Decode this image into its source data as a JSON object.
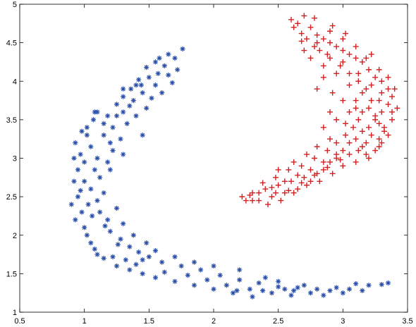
{
  "chart_data": {
    "type": "scatter",
    "title": "",
    "xlabel": "",
    "ylabel": "",
    "xlim": [
      0.5,
      3.5
    ],
    "ylim": [
      1,
      5
    ],
    "xticks": [
      0.5,
      1,
      1.5,
      2,
      2.5,
      3,
      3.5
    ],
    "xtick_labels": [
      "0.5",
      "1",
      "1.5",
      "2",
      "2.5",
      "3",
      "3.5"
    ],
    "yticks": [
      1,
      1.5,
      2,
      2.5,
      3,
      3.5,
      4,
      4.5,
      5
    ],
    "ytick_labels": [
      "1",
      "1.5",
      "2",
      "2.5",
      "3",
      "3.5",
      "4",
      "4.5",
      "5"
    ],
    "grid": false,
    "legend": "none",
    "series": [
      {
        "marker": "asterisk",
        "color": "#2b4ea8",
        "points": [
          [
            0.93,
            3.2
          ],
          [
            0.97,
            3.05
          ],
          [
            1.02,
            3.3
          ],
          [
            1.07,
            3.5
          ],
          [
            1.1,
            3.6
          ],
          [
            1.18,
            3.55
          ],
          [
            1.25,
            3.7
          ],
          [
            1.3,
            3.8
          ],
          [
            1.36,
            3.9
          ],
          [
            1.44,
            3.95
          ],
          [
            1.5,
            4.05
          ],
          [
            1.57,
            4.1
          ],
          [
            1.62,
            4.2
          ],
          [
            1.7,
            4.3
          ],
          [
            1.76,
            4.42
          ],
          [
            1.65,
            4.08
          ],
          [
            1.55,
            3.95
          ],
          [
            1.45,
            3.85
          ],
          [
            1.38,
            3.75
          ],
          [
            1.3,
            3.6
          ],
          [
            1.22,
            3.4
          ],
          [
            1.15,
            3.3
          ],
          [
            1.05,
            3.15
          ],
          [
            1.0,
            2.95
          ],
          [
            0.95,
            2.85
          ],
          [
            0.92,
            2.7
          ],
          [
            0.95,
            2.5
          ],
          [
            0.9,
            2.4
          ],
          [
            0.93,
            2.2
          ],
          [
            1.0,
            2.1
          ],
          [
            1.05,
            1.9
          ],
          [
            1.1,
            1.75
          ],
          [
            1.15,
            1.7
          ],
          [
            1.25,
            1.6
          ],
          [
            1.35,
            1.55
          ],
          [
            1.45,
            1.5
          ],
          [
            1.55,
            1.45
          ],
          [
            1.7,
            1.4
          ],
          [
            1.85,
            1.35
          ],
          [
            2.0,
            1.3
          ],
          [
            2.15,
            1.25
          ],
          [
            2.3,
            1.2
          ],
          [
            2.45,
            1.25
          ],
          [
            2.6,
            1.22
          ],
          [
            2.75,
            1.25
          ],
          [
            2.9,
            1.28
          ],
          [
            3.05,
            1.3
          ],
          [
            3.2,
            1.35
          ],
          [
            3.35,
            1.38
          ],
          [
            1.05,
            2.6
          ],
          [
            1.1,
            2.45
          ],
          [
            1.12,
            2.3
          ],
          [
            1.18,
            2.2
          ],
          [
            1.2,
            2.05
          ],
          [
            1.28,
            1.95
          ],
          [
            1.35,
            1.85
          ],
          [
            1.42,
            1.78
          ],
          [
            1.5,
            1.72
          ],
          [
            1.6,
            1.65
          ],
          [
            1.75,
            1.6
          ],
          [
            1.9,
            1.55
          ],
          [
            2.05,
            1.48
          ],
          [
            2.2,
            1.42
          ],
          [
            2.35,
            1.38
          ],
          [
            2.5,
            1.33
          ],
          [
            2.65,
            1.32
          ],
          [
            2.8,
            1.3
          ],
          [
            2.95,
            1.32
          ],
          [
            1.12,
            2.75
          ],
          [
            1.18,
            2.95
          ],
          [
            1.22,
            3.1
          ],
          [
            1.28,
            3.25
          ],
          [
            1.33,
            3.45
          ],
          [
            1.4,
            3.55
          ],
          [
            1.48,
            3.65
          ],
          [
            1.52,
            3.78
          ],
          [
            1.6,
            3.85
          ],
          [
            1.68,
            3.98
          ],
          [
            1.72,
            4.15
          ],
          [
            1.58,
            4.3
          ],
          [
            1.48,
            4.18
          ],
          [
            1.42,
            4.02
          ],
          [
            1.35,
            3.68
          ],
          [
            1.2,
            3.2
          ],
          [
            1.1,
            3.0
          ],
          [
            1.08,
            2.85
          ],
          [
            1.03,
            2.4
          ],
          [
            0.98,
            2.3
          ],
          [
            1.02,
            2.0
          ],
          [
            1.08,
            1.82
          ],
          [
            1.22,
            1.72
          ],
          [
            1.32,
            1.68
          ],
          [
            1.4,
            1.62
          ],
          [
            1.62,
            1.52
          ],
          [
            1.8,
            1.48
          ],
          [
            1.95,
            1.42
          ],
          [
            2.1,
            1.35
          ],
          [
            2.28,
            1.3
          ],
          [
            2.55,
            1.3
          ],
          [
            2.7,
            1.35
          ],
          [
            3.1,
            1.37
          ],
          [
            0.98,
            3.35
          ],
          [
            1.15,
            3.45
          ],
          [
            1.25,
            3.55
          ],
          [
            1.55,
            4.25
          ],
          [
            1.65,
            4.35
          ],
          [
            1.4,
            3.95
          ],
          [
            1.3,
            3.9
          ],
          [
            1.08,
            3.6
          ],
          [
            1.02,
            3.4
          ],
          [
            0.92,
            3.0
          ],
          [
            1.0,
            2.7
          ],
          [
            1.15,
            2.55
          ],
          [
            1.25,
            2.35
          ],
          [
            1.3,
            2.15
          ],
          [
            1.38,
            2.0
          ],
          [
            1.48,
            1.9
          ],
          [
            1.55,
            1.8
          ],
          [
            1.7,
            1.72
          ],
          [
            1.85,
            1.65
          ],
          [
            2.0,
            1.6
          ],
          [
            2.2,
            1.55
          ],
          [
            2.4,
            1.45
          ],
          [
            2.5,
            1.4
          ],
          [
            1.2,
            2.85
          ],
          [
            1.3,
            3.05
          ],
          [
            1.45,
            3.3
          ],
          [
            0.97,
            2.58
          ],
          [
            1.06,
            2.25
          ],
          [
            1.16,
            2.12
          ],
          [
            1.26,
            1.88
          ],
          [
            1.45,
            1.68
          ],
          [
            2.62,
            1.28
          ],
          [
            2.85,
            1.22
          ],
          [
            3.0,
            1.25
          ],
          [
            3.15,
            1.28
          ],
          [
            3.3,
            1.36
          ],
          [
            2.38,
            1.28
          ],
          [
            2.18,
            1.28
          ]
        ]
      },
      {
        "marker": "plus",
        "color": "#d42020",
        "points": [
          [
            2.25,
            2.45
          ],
          [
            2.3,
            2.55
          ],
          [
            2.35,
            2.45
          ],
          [
            2.4,
            2.6
          ],
          [
            2.45,
            2.5
          ],
          [
            2.5,
            2.65
          ],
          [
            2.55,
            2.55
          ],
          [
            2.6,
            2.7
          ],
          [
            2.65,
            2.6
          ],
          [
            2.7,
            2.75
          ],
          [
            2.75,
            2.7
          ],
          [
            2.8,
            2.8
          ],
          [
            2.85,
            2.85
          ],
          [
            2.9,
            2.95
          ],
          [
            2.95,
            3.0
          ],
          [
            3.0,
            3.1
          ],
          [
            3.05,
            3.2
          ],
          [
            3.1,
            3.25
          ],
          [
            3.15,
            3.35
          ],
          [
            3.2,
            3.4
          ],
          [
            3.25,
            3.5
          ],
          [
            3.3,
            3.6
          ],
          [
            3.35,
            3.7
          ],
          [
            3.38,
            3.8
          ],
          [
            3.35,
            3.9
          ],
          [
            3.3,
            4.0
          ],
          [
            3.25,
            4.05
          ],
          [
            3.2,
            4.15
          ],
          [
            3.15,
            4.25
          ],
          [
            3.1,
            4.3
          ],
          [
            3.05,
            4.35
          ],
          [
            3.0,
            4.4
          ],
          [
            2.95,
            4.45
          ],
          [
            2.9,
            4.5
          ],
          [
            2.85,
            4.55
          ],
          [
            2.8,
            4.6
          ],
          [
            2.75,
            4.7
          ],
          [
            2.7,
            4.85
          ],
          [
            2.65,
            4.75
          ],
          [
            2.6,
            4.8
          ],
          [
            2.72,
            4.55
          ],
          [
            2.82,
            4.4
          ],
          [
            2.9,
            4.3
          ],
          [
            2.98,
            4.2
          ],
          [
            3.05,
            4.1
          ],
          [
            3.12,
            4.0
          ],
          [
            3.18,
            3.9
          ],
          [
            3.22,
            3.75
          ],
          [
            3.28,
            3.45
          ],
          [
            3.32,
            3.35
          ],
          [
            3.3,
            3.2
          ],
          [
            3.25,
            3.1
          ],
          [
            3.18,
            3.05
          ],
          [
            3.1,
            2.95
          ],
          [
            3.0,
            2.9
          ],
          [
            2.92,
            2.8
          ],
          [
            2.82,
            2.7
          ],
          [
            2.72,
            2.65
          ],
          [
            2.62,
            2.55
          ],
          [
            2.52,
            2.45
          ],
          [
            2.42,
            2.4
          ],
          [
            2.35,
            2.55
          ],
          [
            2.48,
            2.75
          ],
          [
            2.58,
            2.85
          ],
          [
            2.68,
            2.9
          ],
          [
            2.78,
            3.0
          ],
          [
            2.88,
            3.1
          ],
          [
            2.95,
            3.2
          ],
          [
            3.02,
            3.3
          ],
          [
            3.08,
            3.4
          ],
          [
            3.12,
            3.5
          ],
          [
            3.15,
            3.6
          ],
          [
            3.2,
            3.65
          ],
          [
            3.28,
            3.75
          ],
          [
            3.22,
            3.95
          ],
          [
            3.12,
            4.1
          ],
          [
            3.0,
            4.25
          ],
          [
            2.88,
            4.35
          ],
          [
            2.78,
            4.45
          ],
          [
            2.68,
            4.62
          ],
          [
            2.78,
            4.82
          ],
          [
            2.9,
            4.65
          ],
          [
            3.0,
            4.55
          ],
          [
            3.1,
            4.45
          ],
          [
            3.18,
            4.3
          ],
          [
            3.28,
            4.15
          ],
          [
            3.35,
            4.05
          ],
          [
            3.4,
            3.9
          ],
          [
            3.42,
            3.65
          ],
          [
            3.38,
            3.5
          ],
          [
            3.35,
            3.3
          ],
          [
            3.28,
            3.25
          ],
          [
            3.22,
            3.3
          ],
          [
            3.15,
            3.15
          ],
          [
            3.05,
            3.05
          ],
          [
            2.95,
            3.05
          ],
          [
            2.85,
            2.95
          ],
          [
            2.75,
            2.85
          ],
          [
            2.65,
            2.78
          ],
          [
            2.55,
            2.7
          ],
          [
            2.45,
            2.62
          ],
          [
            2.28,
            2.52
          ],
          [
            2.38,
            2.68
          ],
          [
            2.5,
            2.85
          ],
          [
            2.62,
            2.95
          ],
          [
            2.72,
            3.05
          ],
          [
            2.8,
            3.15
          ],
          [
            2.9,
            3.25
          ],
          [
            3.05,
            3.6
          ],
          [
            3.1,
            3.75
          ],
          [
            3.15,
            3.85
          ],
          [
            3.05,
            3.95
          ],
          [
            2.95,
            4.1
          ],
          [
            2.85,
            4.2
          ],
          [
            2.75,
            4.3
          ],
          [
            2.7,
            4.4
          ],
          [
            2.8,
            4.5
          ],
          [
            2.92,
            3.85
          ],
          [
            3.0,
            3.75
          ],
          [
            2.95,
            3.5
          ],
          [
            3.02,
            3.45
          ],
          [
            3.1,
            3.65
          ],
          [
            3.25,
            3.55
          ],
          [
            3.3,
            3.85
          ],
          [
            3.38,
            3.6
          ],
          [
            3.32,
            3.4
          ],
          [
            3.28,
            3.15
          ],
          [
            3.18,
            3.2
          ],
          [
            3.12,
            3.1
          ],
          [
            2.98,
            2.98
          ],
          [
            2.88,
            2.88
          ],
          [
            2.78,
            2.78
          ],
          [
            2.68,
            2.68
          ],
          [
            2.58,
            2.58
          ],
          [
            2.48,
            2.55
          ],
          [
            2.3,
            2.45
          ],
          [
            2.22,
            2.5
          ],
          [
            3.22,
            4.35
          ],
          [
            3.02,
            4.62
          ],
          [
            2.92,
            4.72
          ],
          [
            2.62,
            4.7
          ],
          [
            2.68,
            4.52
          ],
          [
            2.85,
            4.05
          ],
          [
            2.8,
            3.9
          ],
          [
            2.9,
            3.6
          ],
          [
            2.85,
            3.4
          ],
          [
            3.2,
            3.0
          ]
        ]
      }
    ]
  }
}
